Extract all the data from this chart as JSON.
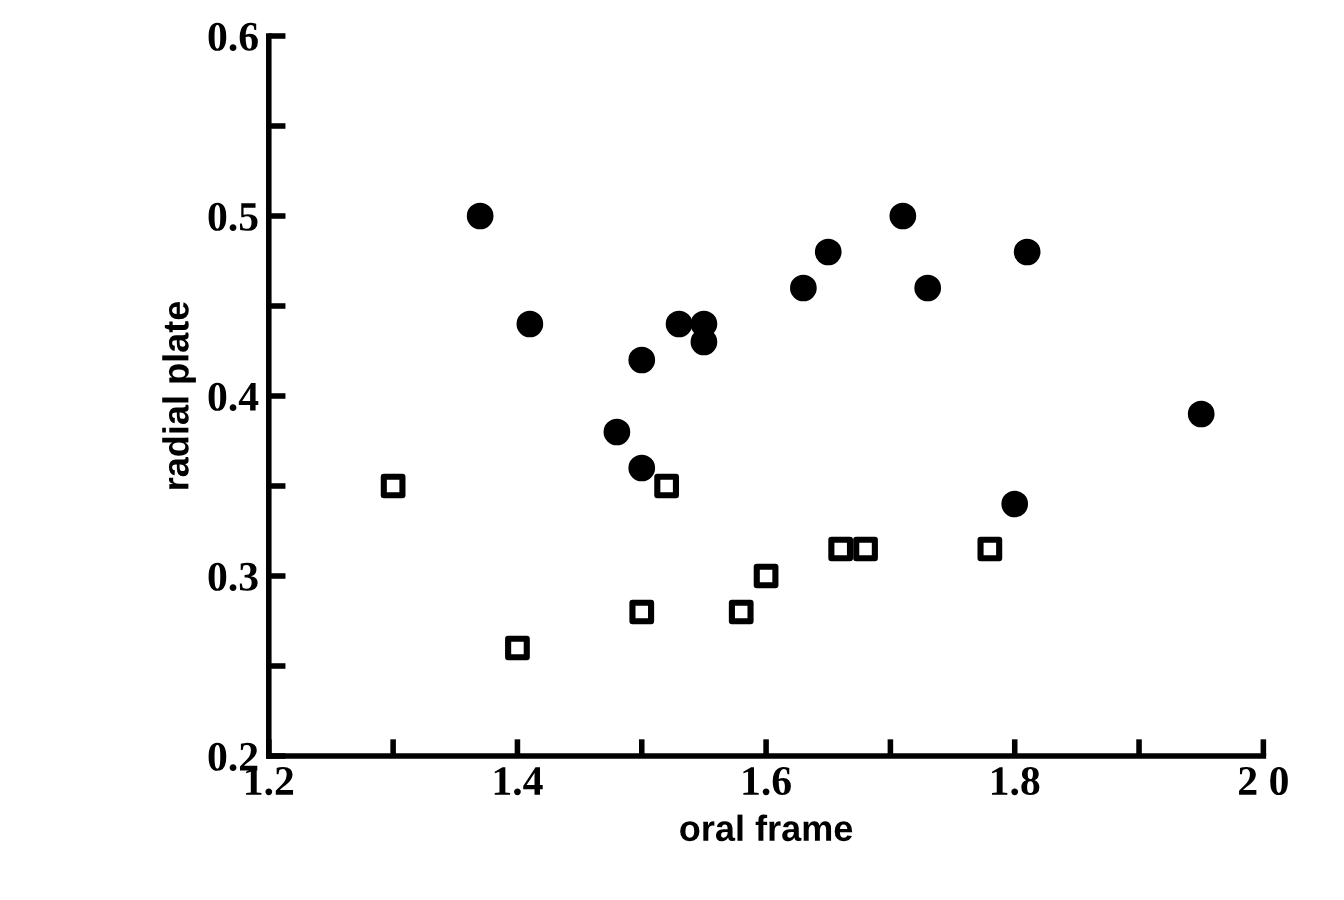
{
  "chart_data": {
    "type": "scatter",
    "xlabel": "oral frame",
    "ylabel": "radial plate",
    "xlim": [
      1.2,
      2.0
    ],
    "ylim": [
      0.2,
      0.6
    ],
    "xticks": [
      {
        "value": 1.2,
        "label": "1.2"
      },
      {
        "value": 1.3,
        "label": null
      },
      {
        "value": 1.4,
        "label": "1.4"
      },
      {
        "value": 1.5,
        "label": null
      },
      {
        "value": 1.6,
        "label": "1.6"
      },
      {
        "value": 1.7,
        "label": null
      },
      {
        "value": 1.8,
        "label": "1.8"
      },
      {
        "value": 1.9,
        "label": null
      },
      {
        "value": 2.0,
        "label": "2 0"
      }
    ],
    "yticks": [
      0.2,
      {
        "value": 0.25,
        "label": null
      },
      0.3,
      {
        "value": 0.35,
        "label": null
      },
      0.4,
      {
        "value": 0.45,
        "label": null
      },
      0.5,
      {
        "value": 0.55,
        "label": null
      },
      0.6
    ],
    "grid": false,
    "legend": false,
    "series": [
      {
        "color": "#000000",
        "marker": "circle",
        "x": [
          1.37,
          1.41,
          1.48,
          1.5,
          1.5,
          1.53,
          1.55,
          1.55,
          1.63,
          1.65,
          1.71,
          1.73,
          1.8,
          1.81,
          1.95
        ],
        "values": [
          0.5,
          0.44,
          0.38,
          0.36,
          0.42,
          0.44,
          0.44,
          0.43,
          0.46,
          0.48,
          0.5,
          0.46,
          0.34,
          0.48,
          0.39
        ]
      },
      {
        "color": "#000000",
        "marker": "square",
        "x": [
          1.3,
          1.4,
          1.5,
          1.52,
          1.58,
          1.6,
          1.66,
          1.68,
          1.78
        ],
        "values": [
          0.35,
          0.26,
          0.28,
          0.35,
          0.28,
          0.3,
          0.315,
          0.315,
          0.315
        ]
      }
    ]
  }
}
